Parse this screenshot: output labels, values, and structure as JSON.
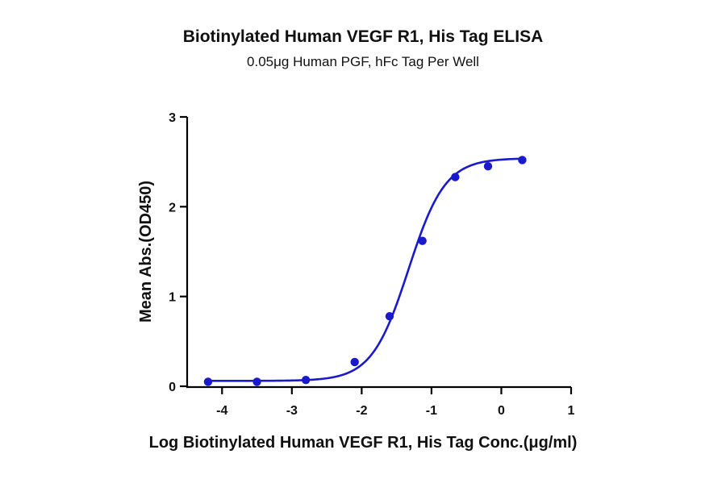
{
  "chart_data": {
    "type": "line",
    "title": "Biotinylated Human VEGF R1, His Tag ELISA",
    "subtitle": "0.05μg Human PGF, hFc Tag Per Well",
    "xlabel": "Log Biotinylated Human VEGF R1, His Tag Conc.(μg/ml)",
    "ylabel": "Mean Abs.(OD450)",
    "xlim": [
      -4.5,
      1
    ],
    "ylim": [
      0,
      3
    ],
    "xticks": [
      -4,
      -3,
      -2,
      -1,
      0,
      1
    ],
    "xtick_labels": [
      "-4",
      "-3",
      "-2",
      "-1",
      "0",
      "1"
    ],
    "yticks": [
      0,
      1,
      2,
      3
    ],
    "ytick_labels": [
      "0",
      "1",
      "2",
      "3"
    ],
    "grid": false,
    "colors": {
      "series": "#1a1acc",
      "axis": "#000000"
    },
    "series": [
      {
        "points": [
          {
            "x": -4.2,
            "y": 0.05
          },
          {
            "x": -3.5,
            "y": 0.05
          },
          {
            "x": -2.8,
            "y": 0.07
          },
          {
            "x": -2.1,
            "y": 0.27
          },
          {
            "x": -1.6,
            "y": 0.78
          },
          {
            "x": -1.13,
            "y": 1.62
          },
          {
            "x": -0.66,
            "y": 2.33
          },
          {
            "x": -0.19,
            "y": 2.45
          },
          {
            "x": 0.3,
            "y": 2.52
          }
        ],
        "fit": {
          "model": "4PL",
          "bottom": 0.06,
          "top": 2.54,
          "logEC50": -1.33,
          "hill": 1.65,
          "xrange": [
            -4.2,
            0.3
          ]
        }
      }
    ]
  }
}
